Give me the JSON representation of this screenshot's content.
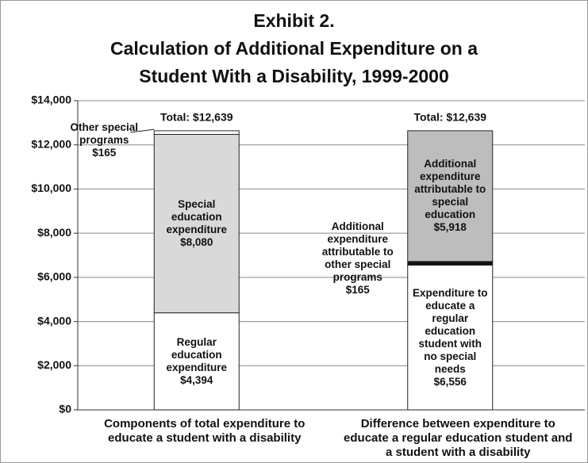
{
  "chart_data": {
    "type": "stacked_bar",
    "title": [
      "Exhibit 2.",
      "Calculation of Additional Expenditure on a",
      "Student With a Disability, 1999-2000"
    ],
    "ylim": [
      0,
      14000
    ],
    "yticks": [
      {
        "value": 0,
        "label": "$0"
      },
      {
        "value": 2000,
        "label": "$2,000"
      },
      {
        "value": 4000,
        "label": "$4,000"
      },
      {
        "value": 6000,
        "label": "$6,000"
      },
      {
        "value": 8000,
        "label": "$8,000"
      },
      {
        "value": 10000,
        "label": "$10,000"
      },
      {
        "value": 12000,
        "label": "$12,000"
      },
      {
        "value": 14000,
        "label": "$14,000"
      }
    ],
    "grid": true,
    "bars": [
      {
        "category": "Components of total expenditure to educate a student with a disability",
        "total_label": "Total: $12,639",
        "segments": [
          {
            "name": "Regular education expenditure",
            "value": 4394,
            "value_label": "$4,394",
            "color": "#ffffff",
            "label_position": "inside"
          },
          {
            "name": "Special education expenditure",
            "value": 8080,
            "value_label": "$8,080",
            "color": "#d9d9d9",
            "label_position": "inside"
          },
          {
            "name": "Other special programs",
            "value": 165,
            "value_label": "$165",
            "color": "#ffffff",
            "label_position": "left"
          }
        ]
      },
      {
        "category": "Difference between expenditure to educate a regular education student and a student with a disability",
        "total_label": "Total: $12,639",
        "segments": [
          {
            "name": "Expenditure to educate a regular education student with no special needs",
            "value": 6556,
            "value_label": "$6,556",
            "color": "#ffffff",
            "label_position": "inside"
          },
          {
            "name": "Additional expenditure attributable to other special programs",
            "value": 165,
            "value_label": "$165",
            "color": "#111111",
            "label_position": "left"
          },
          {
            "name": "Additional expenditure attributable to special education",
            "value": 5918,
            "value_label": "$5,918",
            "color": "#bdbdbd",
            "label_position": "inside"
          }
        ]
      }
    ]
  }
}
